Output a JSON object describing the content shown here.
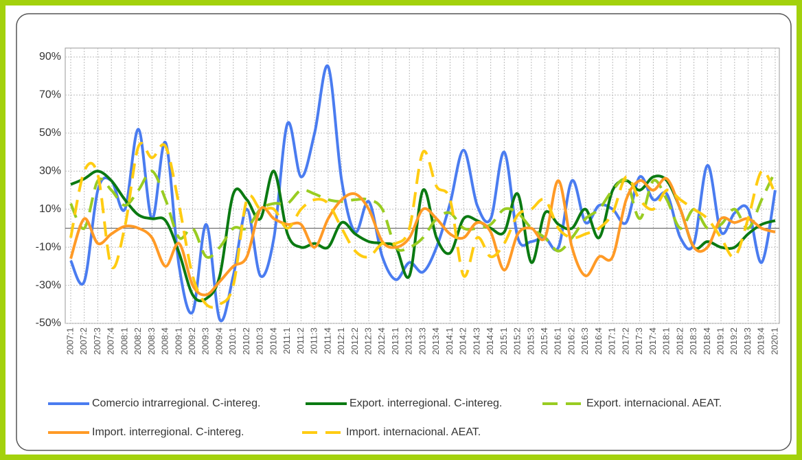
{
  "chart_data": {
    "type": "line",
    "categories": [
      "2007:1",
      "2007:2",
      "2007:3",
      "2007:4",
      "2008:1",
      "2008:2",
      "2008:3",
      "2008:4",
      "2009:1",
      "2009:2",
      "2009:3",
      "2009:4",
      "2010:1",
      "2010:2",
      "2010:3",
      "2010:4",
      "2011:1",
      "2011:2",
      "2011:3",
      "2011:4",
      "2012:1",
      "2012:2",
      "2012:3",
      "2012:4",
      "2013:1",
      "2013:2",
      "2013:3",
      "2013:4",
      "2014:1",
      "2014:2",
      "2014:3",
      "2014:4",
      "2015:1",
      "2015:2",
      "2015:3",
      "2015:4",
      "2016:1",
      "2016:2",
      "2016:3",
      "2016:4",
      "2017:1",
      "2017:2",
      "2017:3",
      "2017:4",
      "2018:1",
      "2018:2",
      "2018:3",
      "2018:4",
      "2019:1",
      "2019:2",
      "2019:3",
      "2019:4",
      "2020:1"
    ],
    "ylim": [
      -50,
      90
    ],
    "yticks": [
      {
        "value": -50,
        "label": "-50%"
      },
      {
        "value": -30,
        "label": "-30%"
      },
      {
        "value": -10,
        "label": "-10%"
      },
      {
        "value": 10,
        "label": "10%"
      },
      {
        "value": 30,
        "label": "30%"
      },
      {
        "value": 50,
        "label": "50%"
      },
      {
        "value": 70,
        "label": "70%"
      },
      {
        "value": 90,
        "label": "90%"
      }
    ],
    "grid": true,
    "smooth": true,
    "series": [
      {
        "name": "Comercio intrarregional. C-intereg.",
        "color": "#4a7cf0",
        "dashed": false,
        "values": [
          -17,
          -28,
          20,
          25,
          10,
          52,
          5,
          45,
          -20,
          -44,
          2,
          -48,
          -25,
          10,
          -25,
          -5,
          55,
          27,
          50,
          85,
          25,
          -2,
          14,
          -15,
          -27,
          -18,
          -23,
          -10,
          13,
          41,
          12,
          5,
          40,
          -5,
          -7,
          -5,
          -10,
          25,
          3,
          12,
          10,
          3,
          27,
          15,
          18,
          -5,
          -8,
          33,
          -2,
          8,
          10,
          -18,
          20
        ]
      },
      {
        "name": "Export. interregional. C-intereg.",
        "color": "#0b7a12",
        "dashed": false,
        "values": [
          23,
          26,
          30,
          25,
          15,
          7,
          5,
          4,
          -13,
          -35,
          -37,
          -25,
          18,
          15,
          5,
          30,
          -3,
          -10,
          -8,
          -10,
          3,
          -3,
          -7,
          -8,
          -10,
          -25,
          20,
          -5,
          -13,
          5,
          4,
          0,
          -2,
          18,
          -18,
          8,
          2,
          0,
          10,
          -5,
          20,
          25,
          20,
          27,
          25,
          10,
          -10,
          -7,
          -10,
          -10,
          -3,
          2,
          4
        ]
      },
      {
        "name": "Export. internacional. AEAT.",
        "color": "#99cc22",
        "dashed": true,
        "values": [
          13,
          0,
          25,
          20,
          12,
          20,
          30,
          15,
          -5,
          0,
          -15,
          -10,
          0,
          0,
          10,
          13,
          13,
          20,
          18,
          15,
          14,
          15,
          15,
          10,
          -10,
          -10,
          -5,
          5,
          8,
          0,
          0,
          2,
          10,
          8,
          0,
          -5,
          -12,
          -5,
          5,
          10,
          20,
          25,
          5,
          25,
          15,
          0,
          10,
          0,
          2,
          10,
          0,
          15,
          30
        ]
      },
      {
        "name": "Import. interregional. C-intereg.",
        "color": "#ff9a26",
        "dashed": false,
        "values": [
          -16,
          5,
          -8,
          -3,
          1,
          0,
          -5,
          -20,
          -8,
          -30,
          -35,
          -28,
          -20,
          -15,
          10,
          5,
          2,
          2,
          -10,
          5,
          15,
          18,
          10,
          -7,
          -10,
          -5,
          10,
          5,
          -3,
          -5,
          3,
          -2,
          -22,
          -3,
          0,
          -5,
          25,
          -10,
          -25,
          -15,
          -15,
          15,
          25,
          20,
          26,
          10,
          -10,
          -10,
          5,
          3,
          5,
          0,
          -2
        ]
      },
      {
        "name": "Import. internacional. AEAT.",
        "color": "#ffcc12",
        "dashed": true,
        "values": [
          -5,
          30,
          28,
          -20,
          1,
          43,
          37,
          43,
          12,
          -25,
          -40,
          -40,
          -30,
          15,
          10,
          10,
          0,
          10,
          15,
          13,
          0,
          -12,
          -15,
          -8,
          -8,
          0,
          40,
          22,
          15,
          -25,
          -5,
          -15,
          -8,
          7,
          10,
          15,
          0,
          -5,
          -3,
          0,
          8,
          27,
          15,
          10,
          20,
          15,
          10,
          5,
          -5,
          -15,
          5,
          30,
          18
        ]
      }
    ]
  }
}
